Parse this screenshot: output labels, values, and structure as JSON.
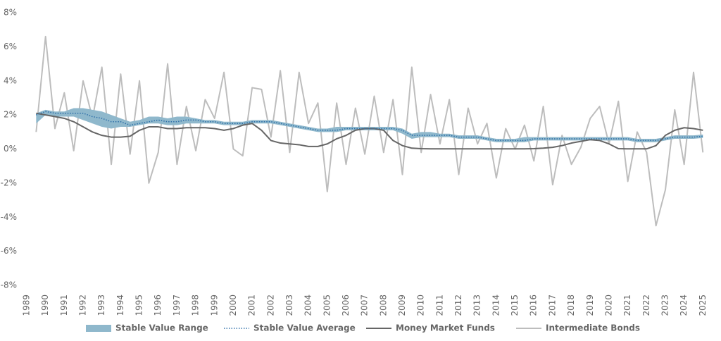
{
  "chart_data": {
    "type": "line",
    "x": [
      1989.5,
      1990,
      1990.5,
      1991,
      1991.5,
      1992,
      1992.5,
      1993,
      1993.5,
      1994,
      1994.5,
      1995,
      1995.5,
      1996,
      1996.5,
      1997,
      1997.5,
      1998,
      1998.5,
      1999,
      1999.5,
      2000,
      2000.5,
      2001,
      2001.5,
      2002,
      2002.5,
      2003,
      2003.5,
      2004,
      2004.5,
      2005,
      2005.5,
      2006,
      2006.5,
      2007,
      2007.5,
      2008,
      2008.5,
      2009,
      2009.5,
      2010,
      2010.5,
      2011,
      2011.5,
      2012,
      2012.5,
      2013,
      2013.5,
      2014,
      2014.5,
      2015,
      2015.5,
      2016,
      2016.5,
      2017,
      2017.5,
      2018,
      2018.5,
      2019,
      2019.5,
      2020,
      2020.5,
      2021,
      2021.5,
      2022,
      2022.5,
      2023,
      2023.5,
      2024,
      2024.5,
      2025
    ],
    "series": [
      {
        "name": "Stable Value Range",
        "color": "#8fb8cc",
        "low": [
          1.5,
          2.0,
          1.9,
          1.9,
          1.9,
          1.7,
          1.5,
          1.3,
          1.2,
          1.3,
          1.3,
          1.4,
          1.5,
          1.5,
          1.4,
          1.4,
          1.5,
          1.5,
          1.5,
          1.5,
          1.4,
          1.4,
          1.4,
          1.5,
          1.5,
          1.5,
          1.4,
          1.3,
          1.2,
          1.1,
          1.0,
          1.0,
          1.0,
          1.1,
          1.1,
          1.1,
          1.1,
          1.1,
          1.1,
          0.9,
          0.6,
          0.7,
          0.7,
          0.7,
          0.7,
          0.6,
          0.6,
          0.6,
          0.5,
          0.4,
          0.4,
          0.4,
          0.4,
          0.5,
          0.5,
          0.5,
          0.5,
          0.5,
          0.5,
          0.5,
          0.5,
          0.5,
          0.5,
          0.5,
          0.4,
          0.4,
          0.4,
          0.5,
          0.6,
          0.6,
          0.6,
          0.65
        ],
        "high": [
          2.1,
          2.3,
          2.2,
          2.2,
          2.4,
          2.4,
          2.3,
          2.2,
          2.0,
          1.8,
          1.6,
          1.7,
          1.9,
          1.9,
          1.8,
          1.9,
          1.9,
          1.8,
          1.7,
          1.7,
          1.6,
          1.6,
          1.6,
          1.7,
          1.7,
          1.7,
          1.6,
          1.5,
          1.4,
          1.3,
          1.2,
          1.2,
          1.3,
          1.3,
          1.3,
          1.3,
          1.3,
          1.3,
          1.3,
          1.2,
          0.9,
          1.0,
          1.0,
          0.9,
          0.9,
          0.8,
          0.8,
          0.8,
          0.7,
          0.6,
          0.6,
          0.6,
          0.7,
          0.7,
          0.7,
          0.7,
          0.7,
          0.7,
          0.7,
          0.7,
          0.7,
          0.7,
          0.7,
          0.7,
          0.6,
          0.6,
          0.6,
          0.7,
          0.8,
          0.8,
          0.8,
          0.85
        ]
      },
      {
        "name": "Stable Value Average",
        "color": "#2e6fa8",
        "style": "dotted",
        "values": [
          2.0,
          2.2,
          2.1,
          2.1,
          2.1,
          2.1,
          1.9,
          1.8,
          1.6,
          1.6,
          1.4,
          1.5,
          1.6,
          1.7,
          1.6,
          1.6,
          1.7,
          1.7,
          1.6,
          1.6,
          1.5,
          1.5,
          1.5,
          1.6,
          1.6,
          1.6,
          1.5,
          1.4,
          1.3,
          1.2,
          1.1,
          1.1,
          1.1,
          1.2,
          1.2,
          1.2,
          1.2,
          1.2,
          1.2,
          1.1,
          0.8,
          0.8,
          0.8,
          0.8,
          0.8,
          0.7,
          0.7,
          0.7,
          0.6,
          0.5,
          0.5,
          0.5,
          0.5,
          0.6,
          0.6,
          0.6,
          0.6,
          0.6,
          0.6,
          0.6,
          0.6,
          0.6,
          0.6,
          0.6,
          0.5,
          0.5,
          0.5,
          0.6,
          0.7,
          0.7,
          0.7,
          0.75
        ]
      },
      {
        "name": "Money Market Funds",
        "color": "#666666",
        "values": [
          2.1,
          2.0,
          1.9,
          1.8,
          1.6,
          1.3,
          1.0,
          0.8,
          0.7,
          0.7,
          0.75,
          1.1,
          1.3,
          1.3,
          1.2,
          1.2,
          1.25,
          1.25,
          1.25,
          1.2,
          1.1,
          1.2,
          1.4,
          1.5,
          1.1,
          0.5,
          0.35,
          0.3,
          0.25,
          0.15,
          0.15,
          0.3,
          0.6,
          0.8,
          1.1,
          1.2,
          1.2,
          1.1,
          0.5,
          0.2,
          0.05,
          0.02,
          0.01,
          0.01,
          0.01,
          0.01,
          0.01,
          0.01,
          0.01,
          0.01,
          0.01,
          0.01,
          0.01,
          0.02,
          0.05,
          0.1,
          0.2,
          0.35,
          0.45,
          0.55,
          0.5,
          0.3,
          0.02,
          0.01,
          0.01,
          0.01,
          0.2,
          0.8,
          1.1,
          1.25,
          1.2,
          1.1
        ]
      },
      {
        "name": "Intermediate Bonds",
        "color": "#bdbdbd",
        "values": [
          1.0,
          6.6,
          1.2,
          3.3,
          -0.1,
          4.0,
          1.8,
          4.8,
          -0.9,
          4.4,
          -0.3,
          4.0,
          -2.0,
          -0.2,
          5.0,
          -0.9,
          2.5,
          -0.1,
          2.9,
          1.8,
          4.5,
          0.0,
          -0.4,
          3.6,
          3.5,
          0.7,
          4.6,
          -0.2,
          4.5,
          1.5,
          2.7,
          -2.5,
          2.7,
          -0.9,
          2.4,
          -0.3,
          3.1,
          -0.2,
          2.9,
          -1.5,
          4.8,
          -0.2,
          3.2,
          0.3,
          2.9,
          -1.5,
          2.4,
          0.3,
          1.5,
          -1.7,
          1.2,
          0.0,
          1.4,
          -0.7,
          2.5,
          -2.1,
          0.8,
          -0.9,
          0.1,
          1.8,
          2.5,
          0.3,
          2.8,
          -1.9,
          1.0,
          -0.2,
          -4.5,
          -2.4,
          2.3,
          -0.9,
          4.5,
          -0.2
        ]
      }
    ],
    "xlim": [
      1989,
      2025.4
    ],
    "xticks": [
      1989,
      1990,
      1991,
      1992,
      1993,
      1994,
      1995,
      1996,
      1997,
      1998,
      1999,
      2000,
      2001,
      2002,
      2003,
      2004,
      2005,
      2006,
      2007,
      2008,
      2009,
      2010,
      2011,
      2012,
      2013,
      2014,
      2015,
      2016,
      2017,
      2018,
      2019,
      2020,
      2021,
      2022,
      2023,
      2024,
      2025
    ],
    "ylim": [
      -8,
      8
    ],
    "yticks": [
      {
        "value": -8,
        "label": "-8%"
      },
      {
        "value": -6,
        "label": "-6%"
      },
      {
        "value": -4,
        "label": "-4%"
      },
      {
        "value": -2,
        "label": "-2%"
      },
      {
        "value": 0,
        "label": "0%"
      },
      {
        "value": 2,
        "label": "2%"
      },
      {
        "value": 4,
        "label": "4%"
      },
      {
        "value": 6,
        "label": "6%"
      },
      {
        "value": 8,
        "label": "8%"
      }
    ],
    "grid": false
  }
}
